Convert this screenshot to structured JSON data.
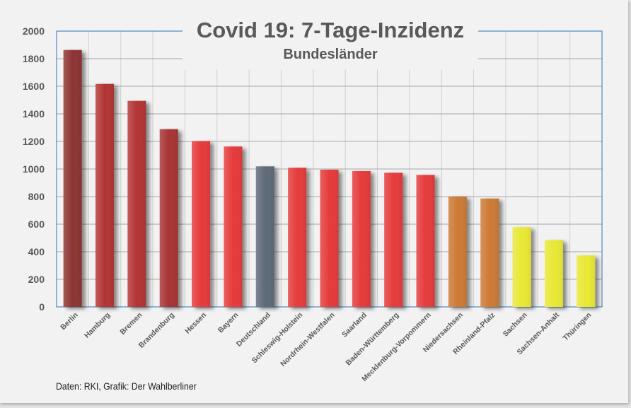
{
  "chart_data": {
    "type": "bar",
    "title": "Covid 19: 7-Tage-Inzidenz",
    "subtitle": "Bundesländer",
    "xlabel": "",
    "ylabel": "",
    "ylim": [
      0,
      2000
    ],
    "yticks": [
      0,
      200,
      400,
      600,
      800,
      1000,
      1200,
      1400,
      1600,
      1800,
      2000
    ],
    "grid": true,
    "legend": "none",
    "categories": [
      "Berlin",
      "Hamburg",
      "Bremen",
      "Brandenburg",
      "Hessen",
      "Bayern",
      "Deutschland",
      "Schleswig-Holstein",
      "Nordrhein-Westfalen",
      "Saarland",
      "Baden-Württemberg",
      "Mecklenburg-Vorpommern",
      "Niedersachsen",
      "Rheinland-Pfalz",
      "Sachsen",
      "Sachsen-Anhalt",
      "Thüringen"
    ],
    "values": [
      1863,
      1617,
      1494,
      1289,
      1203,
      1163,
      1019,
      1009,
      995,
      985,
      973,
      957,
      800,
      786,
      578,
      484,
      373
    ],
    "colors": [
      "#8e3434",
      "#b33636",
      "#b33636",
      "#a83535",
      "#e53a3a",
      "#e53a3a",
      "#5f6b78",
      "#e53a3a",
      "#e53a3a",
      "#e53a3a",
      "#e53a3a",
      "#e53a3a",
      "#cc7a36",
      "#cc7a36",
      "#e8e834",
      "#e8e834",
      "#e8e834"
    ],
    "source": "Daten: RKI, Grafik: Der Wahlberliner"
  }
}
